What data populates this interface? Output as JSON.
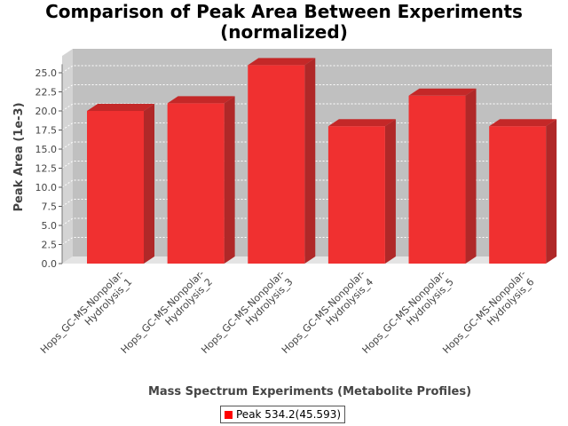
{
  "chart_data": {
    "type": "bar",
    "title_line1": "Comparison of Peak Area Between Experiments",
    "title_line2": "(normalized)",
    "xlabel": "Mass Spectrum Experiments (Metabolite Profiles)",
    "ylabel": "Peak Area (1e-3)",
    "categories": [
      [
        "Hops_GC-MS-Nonpolar-",
        "Hydrolysis_1"
      ],
      [
        "Hops_GC-MS-Nonpolar-",
        "Hydrolysis_2"
      ],
      [
        "Hops_GC-MS-Nonpolar-",
        "Hydrolysis_3"
      ],
      [
        "Hops_GC-MS-Nonpolar-",
        "Hydrolysis_4"
      ],
      [
        "Hops_GC-MS-Nonpolar-",
        "Hydrolysis_5"
      ],
      [
        "Hops_GC-MS-Nonpolar-",
        "Hydrolysis_6"
      ]
    ],
    "series": [
      {
        "name": "Peak 534.2(45.593)",
        "values": [
          20.0,
          21.0,
          26.0,
          18.0,
          22.0,
          18.0
        ]
      }
    ],
    "ylim": [
      0,
      27.5
    ],
    "yticks": [
      "0.0",
      "2.5",
      "5.0",
      "7.5",
      "10.0",
      "12.5",
      "15.0",
      "17.5",
      "20.0",
      "22.5",
      "25.0"
    ],
    "grid": true,
    "legend_position": "bottom",
    "colors": {
      "bar_front": "#f03030",
      "bar_top": "#c42828",
      "bar_side": "#b02828",
      "plot_bg": "#c0c0c0",
      "gridline": "#ffffff"
    }
  }
}
